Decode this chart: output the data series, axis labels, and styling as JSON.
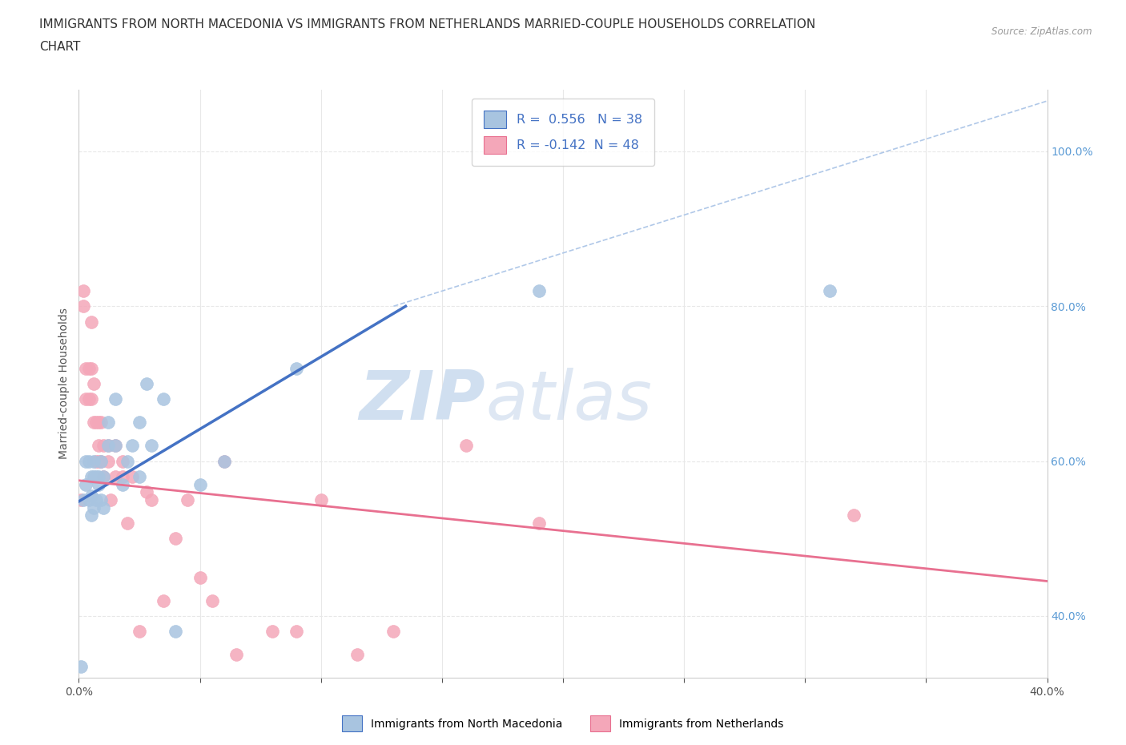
{
  "title_line1": "IMMIGRANTS FROM NORTH MACEDONIA VS IMMIGRANTS FROM NETHERLANDS MARRIED-COUPLE HOUSEHOLDS CORRELATION",
  "title_line2": "CHART",
  "source_text": "Source: ZipAtlas.com",
  "ylabel": "Married-couple Households",
  "legend_label1": "Immigrants from North Macedonia",
  "legend_label2": "Immigrants from Netherlands",
  "R1": 0.556,
  "N1": 38,
  "R2": -0.142,
  "N2": 48,
  "color1": "#a8c4e0",
  "color2": "#f4a7b9",
  "line_color1": "#4472c4",
  "line_color2": "#e87090",
  "watermark_zip": "ZIP",
  "watermark_atlas": "atlas",
  "xlim": [
    0.0,
    0.4
  ],
  "ylim": [
    0.32,
    1.08
  ],
  "x_tick_positions": [
    0.0,
    0.05,
    0.1,
    0.15,
    0.2,
    0.25,
    0.3,
    0.35,
    0.4
  ],
  "x_tick_labels": [
    "0.0%",
    "",
    "",
    "",
    "",
    "",
    "",
    "",
    "40.0%"
  ],
  "y_ticks_right": [
    0.4,
    0.6,
    0.8,
    1.0
  ],
  "y_tick_labels_right": [
    "40.0%",
    "60.0%",
    "80.0%",
    "100.0%"
  ],
  "scatter_blue_x": [
    0.001,
    0.002,
    0.003,
    0.003,
    0.004,
    0.004,
    0.005,
    0.005,
    0.005,
    0.006,
    0.006,
    0.006,
    0.007,
    0.007,
    0.008,
    0.008,
    0.009,
    0.009,
    0.01,
    0.01,
    0.012,
    0.012,
    0.015,
    0.015,
    0.018,
    0.02,
    0.022,
    0.025,
    0.025,
    0.028,
    0.03,
    0.035,
    0.04,
    0.05,
    0.06,
    0.09,
    0.19,
    0.31
  ],
  "scatter_blue_y": [
    0.335,
    0.55,
    0.57,
    0.6,
    0.55,
    0.6,
    0.53,
    0.555,
    0.58,
    0.54,
    0.58,
    0.6,
    0.55,
    0.58,
    0.57,
    0.58,
    0.55,
    0.6,
    0.54,
    0.58,
    0.62,
    0.65,
    0.62,
    0.68,
    0.57,
    0.6,
    0.62,
    0.58,
    0.65,
    0.7,
    0.62,
    0.68,
    0.38,
    0.57,
    0.6,
    0.72,
    0.82,
    0.82
  ],
  "scatter_pink_x": [
    0.001,
    0.002,
    0.002,
    0.003,
    0.003,
    0.004,
    0.004,
    0.005,
    0.005,
    0.005,
    0.006,
    0.006,
    0.007,
    0.007,
    0.008,
    0.008,
    0.008,
    0.009,
    0.009,
    0.01,
    0.01,
    0.012,
    0.012,
    0.013,
    0.015,
    0.015,
    0.018,
    0.018,
    0.02,
    0.022,
    0.025,
    0.028,
    0.03,
    0.035,
    0.04,
    0.045,
    0.05,
    0.055,
    0.06,
    0.065,
    0.08,
    0.09,
    0.1,
    0.115,
    0.13,
    0.16,
    0.19,
    0.32
  ],
  "scatter_pink_y": [
    0.55,
    0.8,
    0.82,
    0.68,
    0.72,
    0.68,
    0.72,
    0.68,
    0.72,
    0.78,
    0.65,
    0.7,
    0.6,
    0.65,
    0.6,
    0.62,
    0.65,
    0.6,
    0.65,
    0.58,
    0.62,
    0.6,
    0.62,
    0.55,
    0.58,
    0.62,
    0.58,
    0.6,
    0.52,
    0.58,
    0.38,
    0.56,
    0.55,
    0.42,
    0.5,
    0.55,
    0.45,
    0.42,
    0.6,
    0.35,
    0.38,
    0.38,
    0.55,
    0.35,
    0.38,
    0.62,
    0.52,
    0.53
  ],
  "background_color": "#ffffff",
  "grid_color": "#e8e8e8",
  "title_fontsize": 11,
  "axis_fontsize": 10,
  "tick_fontsize": 10,
  "blue_line_x": [
    0.0,
    0.135
  ],
  "blue_line_y": [
    0.548,
    0.8
  ],
  "pink_line_x": [
    0.0,
    0.4
  ],
  "pink_line_y": [
    0.575,
    0.445
  ],
  "dash_line_x": [
    0.13,
    0.405
  ],
  "dash_line_y": [
    0.8,
    1.07
  ]
}
